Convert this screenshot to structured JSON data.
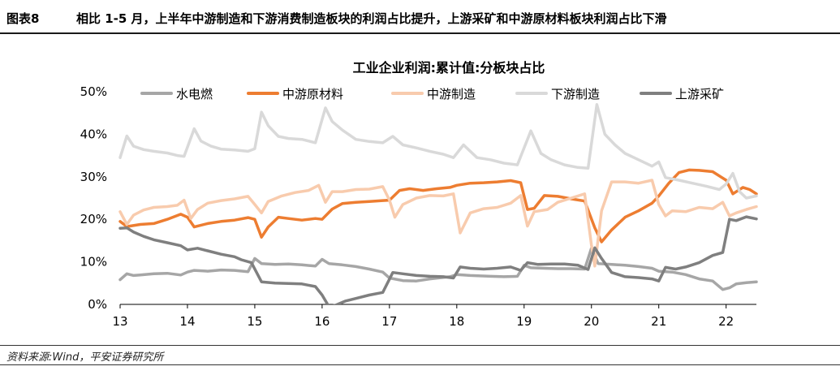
{
  "header": {
    "figure_label": "图表8",
    "title": "相比 1-5 月，上半年中游制造和下游消费制造板块的利润占比提升，上游采矿和中游原材料板块利润占比下滑"
  },
  "footer": {
    "source": "资料来源:Wind，平安证券研究所"
  },
  "chart_data": {
    "type": "line",
    "title": "工业企业利润:累计值:分板块占比",
    "xlabel": "",
    "ylabel": "",
    "ylim": [
      0,
      50
    ],
    "y_ticks": [
      0,
      10,
      20,
      30,
      40,
      50
    ],
    "y_tick_labels": [
      "0%",
      "10%",
      "20%",
      "30%",
      "40%",
      "50%"
    ],
    "x_range": [
      13,
      22.45
    ],
    "x_ticks": [
      13,
      14,
      15,
      16,
      17,
      18,
      19,
      20,
      21,
      22
    ],
    "x_tick_labels": [
      "13",
      "14",
      "15",
      "16",
      "17",
      "18",
      "19",
      "20",
      "21",
      "22"
    ],
    "grid": false,
    "legend_position": "top",
    "series": [
      {
        "name": "水电燃",
        "color": "#a6a6a6",
        "points": [
          [
            13.0,
            5.8
          ],
          [
            13.1,
            7.2
          ],
          [
            13.2,
            6.8
          ],
          [
            13.3,
            6.9
          ],
          [
            13.5,
            7.2
          ],
          [
            13.7,
            7.3
          ],
          [
            13.9,
            6.9
          ],
          [
            14.0,
            7.6
          ],
          [
            14.1,
            8.0
          ],
          [
            14.3,
            7.8
          ],
          [
            14.5,
            8.1
          ],
          [
            14.7,
            8.0
          ],
          [
            14.9,
            7.7
          ],
          [
            15.0,
            10.8
          ],
          [
            15.1,
            9.6
          ],
          [
            15.3,
            9.4
          ],
          [
            15.5,
            9.5
          ],
          [
            15.7,
            9.3
          ],
          [
            15.9,
            9.0
          ],
          [
            16.0,
            10.6
          ],
          [
            16.1,
            9.6
          ],
          [
            16.3,
            9.3
          ],
          [
            16.5,
            8.9
          ],
          [
            16.7,
            8.3
          ],
          [
            16.9,
            7.6
          ],
          [
            17.0,
            6.2
          ],
          [
            17.2,
            5.6
          ],
          [
            17.4,
            5.5
          ],
          [
            17.6,
            6.0
          ],
          [
            17.9,
            6.5
          ],
          [
            18.0,
            7.0
          ],
          [
            18.2,
            6.8
          ],
          [
            18.5,
            6.6
          ],
          [
            18.7,
            6.5
          ],
          [
            18.9,
            6.6
          ],
          [
            19.0,
            9.2
          ],
          [
            19.1,
            8.6
          ],
          [
            19.3,
            8.5
          ],
          [
            19.5,
            8.4
          ],
          [
            19.7,
            8.4
          ],
          [
            19.9,
            8.3
          ],
          [
            20.0,
            13.2
          ],
          [
            20.1,
            9.6
          ],
          [
            20.3,
            9.4
          ],
          [
            20.5,
            9.2
          ],
          [
            20.7,
            8.9
          ],
          [
            20.9,
            8.5
          ],
          [
            21.0,
            7.8
          ],
          [
            21.2,
            7.6
          ],
          [
            21.4,
            7.0
          ],
          [
            21.6,
            6.0
          ],
          [
            21.8,
            5.5
          ],
          [
            21.95,
            3.5
          ],
          [
            22.05,
            3.9
          ],
          [
            22.15,
            4.8
          ],
          [
            22.3,
            5.1
          ],
          [
            22.45,
            5.3
          ]
        ]
      },
      {
        "name": "中游原材料",
        "color": "#ed7d31",
        "points": [
          [
            13.0,
            19.5
          ],
          [
            13.1,
            18.3
          ],
          [
            13.3,
            18.8
          ],
          [
            13.5,
            19.0
          ],
          [
            13.7,
            20.0
          ],
          [
            13.9,
            21.2
          ],
          [
            14.0,
            20.5
          ],
          [
            14.1,
            18.2
          ],
          [
            14.3,
            19.0
          ],
          [
            14.5,
            19.5
          ],
          [
            14.7,
            19.8
          ],
          [
            14.9,
            20.4
          ],
          [
            15.0,
            20.0
          ],
          [
            15.1,
            15.8
          ],
          [
            15.2,
            18.2
          ],
          [
            15.35,
            20.5
          ],
          [
            15.5,
            20.2
          ],
          [
            15.7,
            19.8
          ],
          [
            15.9,
            20.2
          ],
          [
            16.0,
            20.0
          ],
          [
            16.15,
            22.4
          ],
          [
            16.3,
            23.7
          ],
          [
            16.5,
            24.0
          ],
          [
            16.7,
            24.2
          ],
          [
            16.9,
            24.4
          ],
          [
            17.0,
            24.5
          ],
          [
            17.15,
            26.8
          ],
          [
            17.3,
            27.2
          ],
          [
            17.5,
            26.8
          ],
          [
            17.7,
            27.2
          ],
          [
            17.9,
            27.5
          ],
          [
            18.0,
            28.0
          ],
          [
            18.2,
            28.5
          ],
          [
            18.4,
            28.6
          ],
          [
            18.6,
            28.8
          ],
          [
            18.8,
            29.1
          ],
          [
            18.95,
            28.6
          ],
          [
            19.05,
            22.3
          ],
          [
            19.15,
            22.6
          ],
          [
            19.3,
            25.6
          ],
          [
            19.5,
            25.4
          ],
          [
            19.7,
            24.8
          ],
          [
            19.9,
            24.3
          ],
          [
            20.05,
            18.0
          ],
          [
            20.15,
            14.7
          ],
          [
            20.3,
            17.5
          ],
          [
            20.5,
            20.5
          ],
          [
            20.7,
            22.0
          ],
          [
            20.9,
            23.8
          ],
          [
            21.0,
            25.5
          ],
          [
            21.15,
            28.5
          ],
          [
            21.3,
            31.0
          ],
          [
            21.45,
            31.6
          ],
          [
            21.6,
            31.5
          ],
          [
            21.8,
            31.2
          ],
          [
            22.0,
            29.2
          ],
          [
            22.1,
            26.0
          ],
          [
            22.25,
            27.5
          ],
          [
            22.35,
            27.0
          ],
          [
            22.45,
            26.0
          ]
        ]
      },
      {
        "name": "中游制造",
        "color": "#f8cbad",
        "points": [
          [
            13.0,
            21.8
          ],
          [
            13.1,
            18.8
          ],
          [
            13.2,
            21.0
          ],
          [
            13.35,
            22.2
          ],
          [
            13.5,
            22.8
          ],
          [
            13.7,
            23.0
          ],
          [
            13.85,
            23.3
          ],
          [
            13.95,
            24.5
          ],
          [
            14.05,
            20.2
          ],
          [
            14.15,
            22.3
          ],
          [
            14.3,
            23.8
          ],
          [
            14.5,
            24.4
          ],
          [
            14.7,
            24.8
          ],
          [
            14.9,
            25.4
          ],
          [
            15.0,
            23.5
          ],
          [
            15.1,
            21.5
          ],
          [
            15.2,
            24.2
          ],
          [
            15.4,
            25.5
          ],
          [
            15.6,
            26.3
          ],
          [
            15.8,
            26.8
          ],
          [
            15.95,
            28.0
          ],
          [
            16.05,
            24.0
          ],
          [
            16.15,
            26.5
          ],
          [
            16.3,
            26.5
          ],
          [
            16.5,
            27.0
          ],
          [
            16.7,
            27.1
          ],
          [
            16.9,
            27.7
          ],
          [
            17.0,
            24.5
          ],
          [
            17.08,
            20.5
          ],
          [
            17.2,
            23.5
          ],
          [
            17.4,
            25.0
          ],
          [
            17.6,
            25.6
          ],
          [
            17.8,
            25.5
          ],
          [
            17.95,
            26.0
          ],
          [
            18.05,
            16.8
          ],
          [
            18.2,
            21.5
          ],
          [
            18.4,
            22.5
          ],
          [
            18.6,
            22.8
          ],
          [
            18.8,
            23.8
          ],
          [
            18.95,
            25.6
          ],
          [
            19.05,
            18.4
          ],
          [
            19.15,
            21.8
          ],
          [
            19.35,
            22.3
          ],
          [
            19.5,
            24.0
          ],
          [
            19.7,
            25.0
          ],
          [
            19.9,
            26.0
          ],
          [
            20.0,
            14.0
          ],
          [
            20.05,
            9.0
          ],
          [
            20.15,
            22.0
          ],
          [
            20.3,
            28.8
          ],
          [
            20.5,
            28.8
          ],
          [
            20.7,
            28.5
          ],
          [
            20.9,
            29.2
          ],
          [
            21.0,
            23.5
          ],
          [
            21.1,
            20.8
          ],
          [
            21.2,
            22.0
          ],
          [
            21.4,
            21.8
          ],
          [
            21.6,
            22.8
          ],
          [
            21.8,
            22.5
          ],
          [
            21.95,
            24.0
          ],
          [
            22.05,
            20.8
          ],
          [
            22.15,
            21.5
          ],
          [
            22.3,
            22.3
          ],
          [
            22.45,
            23.0
          ]
        ]
      },
      {
        "name": "下游制造",
        "color": "#d9d9d9",
        "points": [
          [
            13.0,
            34.5
          ],
          [
            13.1,
            39.6
          ],
          [
            13.2,
            37.2
          ],
          [
            13.35,
            36.4
          ],
          [
            13.5,
            36.0
          ],
          [
            13.7,
            35.6
          ],
          [
            13.85,
            35.0
          ],
          [
            13.95,
            34.8
          ],
          [
            14.1,
            41.3
          ],
          [
            14.2,
            38.4
          ],
          [
            14.35,
            37.2
          ],
          [
            14.5,
            36.5
          ],
          [
            14.7,
            36.3
          ],
          [
            14.9,
            36.0
          ],
          [
            15.0,
            36.6
          ],
          [
            15.1,
            45.2
          ],
          [
            15.2,
            42.0
          ],
          [
            15.35,
            39.5
          ],
          [
            15.5,
            39.0
          ],
          [
            15.7,
            38.8
          ],
          [
            15.9,
            38.0
          ],
          [
            16.05,
            46.2
          ],
          [
            16.15,
            43.0
          ],
          [
            16.3,
            41.0
          ],
          [
            16.5,
            38.8
          ],
          [
            16.7,
            38.3
          ],
          [
            16.9,
            38.0
          ],
          [
            17.05,
            39.5
          ],
          [
            17.2,
            37.5
          ],
          [
            17.4,
            36.8
          ],
          [
            17.6,
            36.0
          ],
          [
            17.8,
            35.3
          ],
          [
            17.95,
            34.5
          ],
          [
            18.1,
            37.5
          ],
          [
            18.3,
            34.5
          ],
          [
            18.5,
            34.0
          ],
          [
            18.7,
            33.2
          ],
          [
            18.9,
            32.8
          ],
          [
            19.1,
            40.8
          ],
          [
            19.25,
            35.5
          ],
          [
            19.4,
            34.0
          ],
          [
            19.6,
            32.8
          ],
          [
            19.8,
            32.2
          ],
          [
            19.95,
            32.0
          ],
          [
            20.08,
            47.0
          ],
          [
            20.2,
            40.0
          ],
          [
            20.35,
            37.5
          ],
          [
            20.5,
            35.5
          ],
          [
            20.7,
            34.0
          ],
          [
            20.9,
            32.5
          ],
          [
            21.0,
            33.5
          ],
          [
            21.1,
            29.8
          ],
          [
            21.3,
            29.2
          ],
          [
            21.5,
            28.5
          ],
          [
            21.7,
            27.8
          ],
          [
            21.9,
            27.0
          ],
          [
            22.0,
            28.3
          ],
          [
            22.1,
            30.8
          ],
          [
            22.2,
            26.5
          ],
          [
            22.3,
            25.0
          ],
          [
            22.45,
            25.5
          ]
        ]
      },
      {
        "name": "上游采矿",
        "color": "#7f7f7f",
        "points": [
          [
            13.0,
            17.9
          ],
          [
            13.1,
            18.0
          ],
          [
            13.2,
            17.0
          ],
          [
            13.35,
            16.0
          ],
          [
            13.5,
            15.2
          ],
          [
            13.7,
            14.5
          ],
          [
            13.9,
            13.8
          ],
          [
            14.0,
            12.8
          ],
          [
            14.15,
            13.2
          ],
          [
            14.3,
            12.6
          ],
          [
            14.5,
            11.8
          ],
          [
            14.7,
            11.2
          ],
          [
            14.8,
            10.5
          ],
          [
            14.95,
            9.8
          ],
          [
            15.1,
            5.3
          ],
          [
            15.3,
            5.0
          ],
          [
            15.5,
            4.9
          ],
          [
            15.7,
            4.8
          ],
          [
            15.9,
            4.2
          ],
          [
            16.0,
            2.2
          ],
          [
            16.1,
            -0.5
          ],
          [
            16.2,
            -0.2
          ],
          [
            16.35,
            0.8
          ],
          [
            16.5,
            1.4
          ],
          [
            16.7,
            2.2
          ],
          [
            16.9,
            2.8
          ],
          [
            17.05,
            7.5
          ],
          [
            17.2,
            7.2
          ],
          [
            17.4,
            6.8
          ],
          [
            17.6,
            6.6
          ],
          [
            17.8,
            6.5
          ],
          [
            17.95,
            6.2
          ],
          [
            18.05,
            8.8
          ],
          [
            18.2,
            8.5
          ],
          [
            18.4,
            8.3
          ],
          [
            18.6,
            8.5
          ],
          [
            18.8,
            8.8
          ],
          [
            18.95,
            8.0
          ],
          [
            19.05,
            9.8
          ],
          [
            19.2,
            9.4
          ],
          [
            19.4,
            9.5
          ],
          [
            19.6,
            9.5
          ],
          [
            19.8,
            9.2
          ],
          [
            19.95,
            8.2
          ],
          [
            20.05,
            13.3
          ],
          [
            20.15,
            10.8
          ],
          [
            20.3,
            7.5
          ],
          [
            20.5,
            6.5
          ],
          [
            20.7,
            6.3
          ],
          [
            20.9,
            6.0
          ],
          [
            21.0,
            5.5
          ],
          [
            21.1,
            8.7
          ],
          [
            21.25,
            8.3
          ],
          [
            21.4,
            8.8
          ],
          [
            21.6,
            9.8
          ],
          [
            21.8,
            11.5
          ],
          [
            21.95,
            12.2
          ],
          [
            22.05,
            20.0
          ],
          [
            22.15,
            19.7
          ],
          [
            22.3,
            20.6
          ],
          [
            22.45,
            20.1
          ]
        ]
      }
    ]
  }
}
